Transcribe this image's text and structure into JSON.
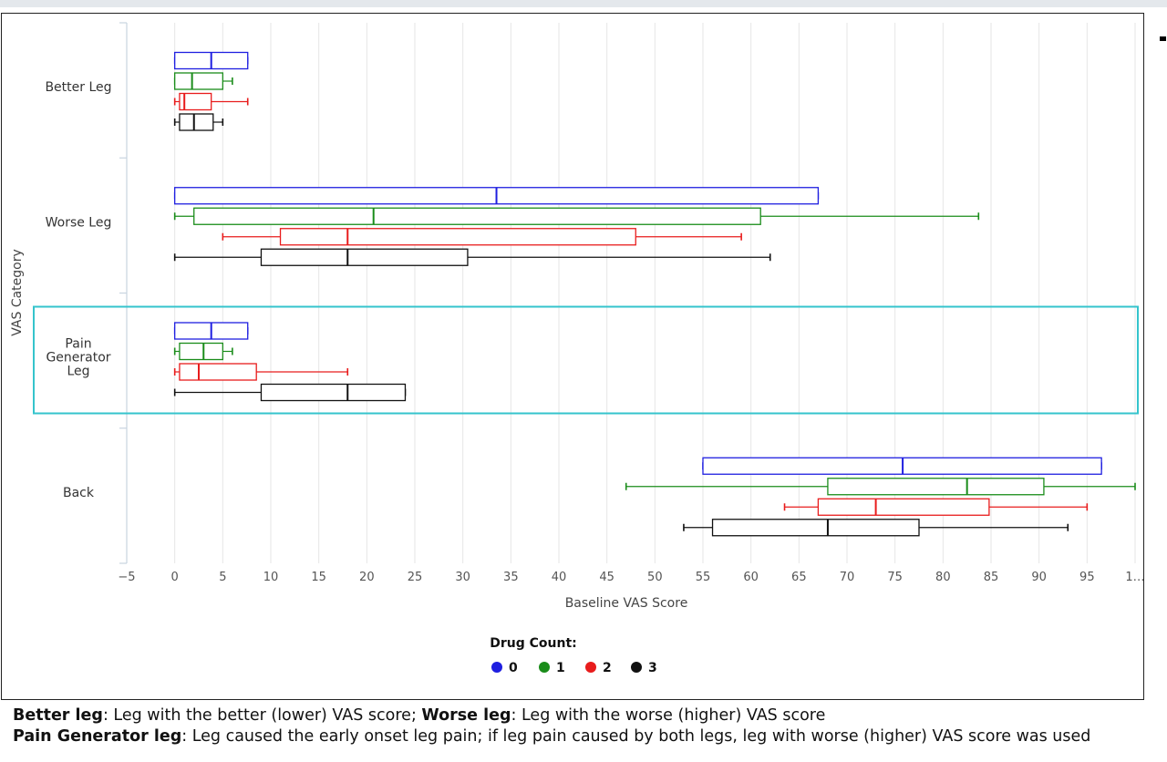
{
  "chart_data": {
    "type": "boxplot",
    "orientation": "horizontal",
    "xlabel": "Baseline VAS Score",
    "ylabel": "VAS Category",
    "xlim": [
      -5,
      100
    ],
    "x_ticks": [
      "−5",
      "0",
      "5",
      "10",
      "15",
      "20",
      "25",
      "30",
      "35",
      "40",
      "45",
      "50",
      "55",
      "60",
      "65",
      "70",
      "75",
      "80",
      "85",
      "90",
      "95",
      "1…"
    ],
    "grid": "vertical",
    "legend": {
      "title": "Drug Count:",
      "placement": "bottom-center",
      "items": [
        {
          "label": "0",
          "color": "#1f1fe0"
        },
        {
          "label": "1",
          "color": "#1a8c1a"
        },
        {
          "label": "2",
          "color": "#e81c1c"
        },
        {
          "label": "3",
          "color": "#111111"
        }
      ]
    },
    "highlighted_category": "Pain Generator Leg",
    "highlight_color": "#35c4cc",
    "categories": [
      {
        "name": "Better Leg",
        "label_lines": [
          "Better Leg"
        ],
        "boxes": [
          {
            "series": "0",
            "min": 0,
            "q1": 0,
            "median": 3.8,
            "q3": 7.6,
            "max": 7.6
          },
          {
            "series": "1",
            "min": 0,
            "q1": 0,
            "median": 1.8,
            "q3": 5.0,
            "max": 6.0
          },
          {
            "series": "2",
            "min": 0,
            "q1": 0.5,
            "median": 1.0,
            "q3": 3.8,
            "max": 7.6
          },
          {
            "series": "3",
            "min": 0,
            "q1": 0.5,
            "median": 2.0,
            "q3": 4.0,
            "max": 5.0
          }
        ]
      },
      {
        "name": "Worse Leg",
        "label_lines": [
          "Worse Leg"
        ],
        "boxes": [
          {
            "series": "0",
            "min": 0,
            "q1": 0,
            "median": 33.5,
            "q3": 67.0,
            "max": 67.0
          },
          {
            "series": "1",
            "min": 0,
            "q1": 2.0,
            "median": 20.7,
            "q3": 61.0,
            "max": 83.7
          },
          {
            "series": "2",
            "min": 5.0,
            "q1": 11.0,
            "median": 18.0,
            "q3": 48.0,
            "max": 59.0
          },
          {
            "series": "3",
            "min": 0,
            "q1": 9.0,
            "median": 18.0,
            "q3": 30.5,
            "max": 62.0
          }
        ]
      },
      {
        "name": "Pain Generator Leg",
        "label_lines": [
          "Pain",
          "Generator",
          "Leg"
        ],
        "boxes": [
          {
            "series": "0",
            "min": 0,
            "q1": 0,
            "median": 3.8,
            "q3": 7.6,
            "max": 7.6
          },
          {
            "series": "1",
            "min": 0,
            "q1": 0.5,
            "median": 3.0,
            "q3": 5.0,
            "max": 6.0
          },
          {
            "series": "2",
            "min": 0,
            "q1": 0.5,
            "median": 2.5,
            "q3": 8.5,
            "max": 18.0
          },
          {
            "series": "3",
            "min": 0,
            "q1": 9.0,
            "median": 18.0,
            "q3": 24.0,
            "max": 24.0
          }
        ]
      },
      {
        "name": "Back",
        "label_lines": [
          "Back"
        ],
        "boxes": [
          {
            "series": "0",
            "min": 55.0,
            "q1": 55.0,
            "median": 75.8,
            "q3": 96.5,
            "max": 96.5
          },
          {
            "series": "1",
            "min": 47.0,
            "q1": 68.0,
            "median": 82.5,
            "q3": 90.5,
            "max": 100.0
          },
          {
            "series": "2",
            "min": 63.5,
            "q1": 67.0,
            "median": 73.0,
            "q3": 84.8,
            "max": 95.0
          },
          {
            "series": "3",
            "min": 53.0,
            "q1": 56.0,
            "median": 68.0,
            "q3": 77.5,
            "max": 93.0
          }
        ]
      }
    ]
  },
  "footnotes": {
    "line1": {
      "term1": "Better leg",
      "def1": ": Leg with the better (lower) VAS score; ",
      "term2": "Worse leg",
      "def2": ": Leg with the worse (higher) VAS score"
    },
    "line2": {
      "term": "Pain Generator leg",
      "def": ": Leg caused the early onset leg pain; if leg pain caused by both legs, leg with worse (higher) VAS score was used"
    }
  }
}
